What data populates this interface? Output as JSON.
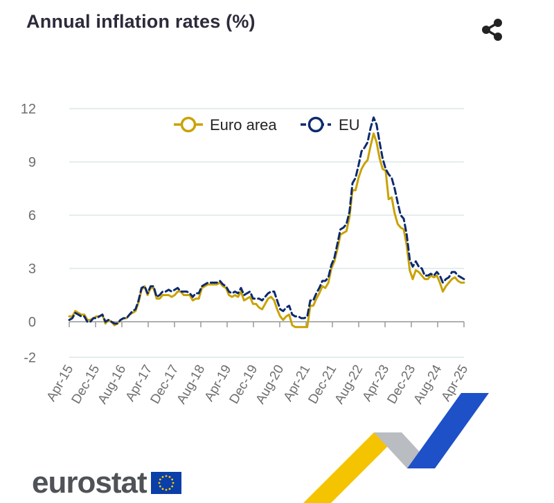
{
  "header": {
    "title": "Annual inflation rates (%)",
    "share_icon": "share-icon"
  },
  "brand": {
    "name": "eurostat",
    "flag_icon": "eu-flag-icon"
  },
  "colors": {
    "euro_area": "#c9a200",
    "eu": "#0c2a6e",
    "grid": "#dbe7e7",
    "deco_yellow": "#f5c400",
    "deco_grey": "#b9bcc0",
    "deco_blue": "#1e50c8"
  },
  "chart_data": {
    "type": "line",
    "ylim": [
      -2,
      12
    ],
    "yticks": [
      12,
      9,
      6,
      3,
      0,
      -2
    ],
    "grid": true,
    "legend_position": "top",
    "x_tick_labels": [
      "Apr-15",
      "Dec-15",
      "Aug-16",
      "Apr-17",
      "Dec-17",
      "Aug-18",
      "Apr-19",
      "Dec-19",
      "Aug-20",
      "Apr-21",
      "Dec-21",
      "Aug-22",
      "Apr-23",
      "Dec-23",
      "Aug-24",
      "Apr-25"
    ],
    "x_first": "Apr-15",
    "x_last": "Apr-25",
    "series": [
      {
        "name": "Euro area",
        "style": "solid",
        "values": [
          0.3,
          0.3,
          0.6,
          0.5,
          0.4,
          0.4,
          0.1,
          0.1,
          0.2,
          0.3,
          0.3,
          0.4,
          -0.1,
          0.1,
          0.0,
          -0.2,
          -0.1,
          0.1,
          0.2,
          0.2,
          0.4,
          0.5,
          0.6,
          1.1,
          1.8,
          2.0,
          1.5,
          1.9,
          1.9,
          1.3,
          1.3,
          1.5,
          1.5,
          1.5,
          1.4,
          1.5,
          1.7,
          1.7,
          1.5,
          1.5,
          1.5,
          1.2,
          1.3,
          1.3,
          1.9,
          2.0,
          2.1,
          2.1,
          2.1,
          2.1,
          2.2,
          2.0,
          1.9,
          1.5,
          1.4,
          1.5,
          1.4,
          1.7,
          1.2,
          1.3,
          1.4,
          1.0,
          1.0,
          0.8,
          0.7,
          1.0,
          1.3,
          1.4,
          1.2,
          0.7,
          0.3,
          0.1,
          0.3,
          0.4,
          -0.2,
          -0.3,
          -0.3,
          -0.3,
          -0.3,
          -0.3,
          0.9,
          0.9,
          1.3,
          1.6,
          2.0,
          1.9,
          2.2,
          3.0,
          3.4,
          4.1,
          4.9,
          5.0,
          5.1,
          5.9,
          7.4,
          7.4,
          8.1,
          8.6,
          8.9,
          9.1,
          9.9,
          10.6,
          10.1,
          9.2,
          8.6,
          8.5,
          6.9,
          7.0,
          6.1,
          5.5,
          5.3,
          5.2,
          4.3,
          2.9,
          2.4,
          2.9,
          2.8,
          2.6,
          2.4,
          2.4,
          2.6,
          2.5,
          2.6,
          2.2,
          1.7,
          2.0,
          2.2,
          2.4,
          2.5,
          2.3,
          2.2,
          2.2
        ]
      },
      {
        "name": "EU",
        "style": "dashed",
        "values": [
          0.1,
          0.2,
          0.5,
          0.4,
          0.3,
          0.3,
          0.0,
          0.0,
          0.2,
          0.2,
          0.3,
          0.4,
          0.0,
          0.1,
          0.0,
          -0.1,
          -0.1,
          0.1,
          0.2,
          0.2,
          0.4,
          0.6,
          0.7,
          1.2,
          1.9,
          2.0,
          1.6,
          2.0,
          2.0,
          1.4,
          1.5,
          1.7,
          1.7,
          1.8,
          1.7,
          1.8,
          1.9,
          1.7,
          1.7,
          1.7,
          1.6,
          1.4,
          1.6,
          1.6,
          2.0,
          2.1,
          2.2,
          2.2,
          2.2,
          2.2,
          2.3,
          2.1,
          2.0,
          1.7,
          1.6,
          1.7,
          1.6,
          1.9,
          1.5,
          1.6,
          1.7,
          1.3,
          1.3,
          1.3,
          1.2,
          1.4,
          1.6,
          1.7,
          1.7,
          1.2,
          0.7,
          0.6,
          0.8,
          0.9,
          0.4,
          0.3,
          0.3,
          0.2,
          0.2,
          0.3,
          1.2,
          1.2,
          1.6,
          1.9,
          2.3,
          2.3,
          2.5,
          3.2,
          3.6,
          4.4,
          5.2,
          5.3,
          5.5,
          6.2,
          7.8,
          8.1,
          8.8,
          9.6,
          9.8,
          10.1,
          10.9,
          11.5,
          11.1,
          10.1,
          9.2,
          8.6,
          8.3,
          8.1,
          7.5,
          6.7,
          6.0,
          5.8,
          4.9,
          3.5,
          3.1,
          3.4,
          3.1,
          3.0,
          2.6,
          2.6,
          2.7,
          2.6,
          2.8,
          2.6,
          2.2,
          2.4,
          2.5,
          2.8,
          2.8,
          2.6,
          2.5,
          2.4
        ]
      }
    ]
  }
}
